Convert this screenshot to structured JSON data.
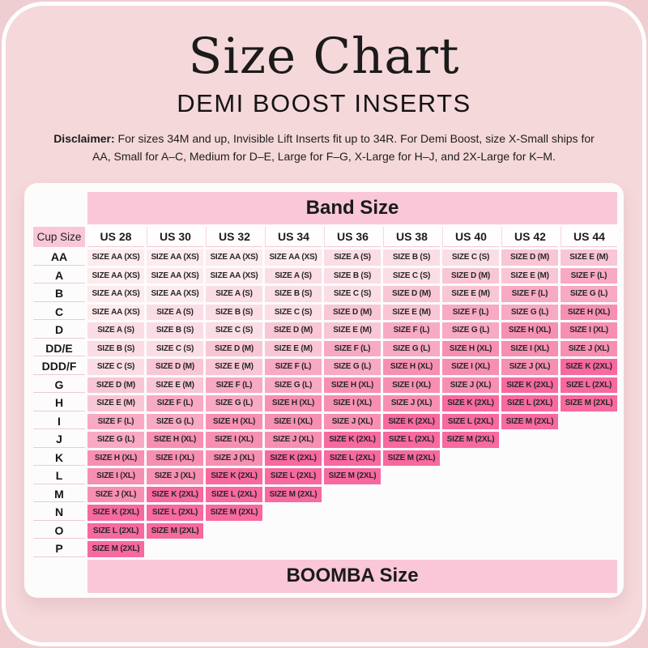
{
  "page": {
    "title": "Size Chart",
    "subtitle": "DEMI BOOST INSERTS",
    "disclaimer_label": "Disclaimer:",
    "disclaimer_text": " For sizes 34M and up, Invisible Lift Inserts fit up to 34R. For Demi Boost, size X-Small ships for AA, Small for A–C, Medium for D–E, Large for F–G, X-Large for H–J, and 2X-Large for K–M."
  },
  "colors": {
    "background": "#efcdd1",
    "panel": "#f5d8da",
    "card": "#fdfcfd",
    "header_pink": "#f9c7d8",
    "size_XS": "#fdebee",
    "size_S": "#fbdde5",
    "size_M": "#f9c6d5",
    "size_L": "#f8a9c3",
    "size_XL": "#f78fb3",
    "size_2XL": "#f7699f"
  },
  "chart_data": {
    "type": "table",
    "title": "Size Chart",
    "subtitle": "DEMI BOOST INSERTS",
    "column_group_header": "Band Size",
    "row_header": "Cup Size",
    "footer": "BOOMBA Size",
    "columns": [
      "US 28",
      "US 30",
      "US 32",
      "US 34",
      "US 36",
      "US 38",
      "US 40",
      "US 42",
      "US 44"
    ],
    "rows": [
      {
        "cup": "AA",
        "cells": [
          "SIZE AA (XS)",
          "SIZE AA (XS)",
          "SIZE AA (XS)",
          "SIZE AA (XS)",
          "SIZE A (S)",
          "SIZE B (S)",
          "SIZE C (S)",
          "SIZE D (M)",
          "SIZE E (M)"
        ]
      },
      {
        "cup": "A",
        "cells": [
          "SIZE AA (XS)",
          "SIZE AA (XS)",
          "SIZE AA (XS)",
          "SIZE A (S)",
          "SIZE B (S)",
          "SIZE C (S)",
          "SIZE D (M)",
          "SIZE E (M)",
          "SIZE F (L)"
        ]
      },
      {
        "cup": "B",
        "cells": [
          "SIZE AA (XS)",
          "SIZE AA (XS)",
          "SIZE A (S)",
          "SIZE B (S)",
          "SIZE C (S)",
          "SIZE D (M)",
          "SIZE E (M)",
          "SIZE F (L)",
          "SIZE G (L)"
        ]
      },
      {
        "cup": "C",
        "cells": [
          "SIZE AA (XS)",
          "SIZE A (S)",
          "SIZE B (S)",
          "SIZE C (S)",
          "SIZE D (M)",
          "SIZE E (M)",
          "SIZE F (L)",
          "SIZE G (L)",
          "SIZE H (XL)"
        ]
      },
      {
        "cup": "D",
        "cells": [
          "SIZE A (S)",
          "SIZE B (S)",
          "SIZE C (S)",
          "SIZE D (M)",
          "SIZE E (M)",
          "SIZE F (L)",
          "SIZE G (L)",
          "SIZE H (XL)",
          "SIZE I (XL)"
        ]
      },
      {
        "cup": "DD/E",
        "cells": [
          "SIZE B (S)",
          "SIZE C (S)",
          "SIZE D (M)",
          "SIZE E (M)",
          "SIZE F (L)",
          "SIZE G (L)",
          "SIZE H (XL)",
          "SIZE I (XL)",
          "SIZE J (XL)"
        ]
      },
      {
        "cup": "DDD/F",
        "cells": [
          "SIZE C (S)",
          "SIZE D (M)",
          "SIZE E (M)",
          "SIZE F (L)",
          "SIZE G (L)",
          "SIZE H (XL)",
          "SIZE I (XL)",
          "SIZE J (XL)",
          "SIZE K (2XL)"
        ]
      },
      {
        "cup": "G",
        "cells": [
          "SIZE D (M)",
          "SIZE E (M)",
          "SIZE F (L)",
          "SIZE G (L)",
          "SIZE H (XL)",
          "SIZE I (XL)",
          "SIZE J (XL)",
          "SIZE K (2XL)",
          "SIZE L (2XL)"
        ]
      },
      {
        "cup": "H",
        "cells": [
          "SIZE E (M)",
          "SIZE F (L)",
          "SIZE G (L)",
          "SIZE H (XL)",
          "SIZE I (XL)",
          "SIZE J (XL)",
          "SIZE K (2XL)",
          "SIZE L (2XL)",
          "SIZE M (2XL)"
        ]
      },
      {
        "cup": "I",
        "cells": [
          "SIZE F (L)",
          "SIZE G (L)",
          "SIZE H (XL)",
          "SIZE I (XL)",
          "SIZE J (XL)",
          "SIZE K (2XL)",
          "SIZE L (2XL)",
          "SIZE M (2XL)",
          ""
        ]
      },
      {
        "cup": "J",
        "cells": [
          "SIZE G (L)",
          "SIZE H (XL)",
          "SIZE I (XL)",
          "SIZE J (XL)",
          "SIZE K (2XL)",
          "SIZE L (2XL)",
          "SIZE M (2XL)",
          "",
          ""
        ]
      },
      {
        "cup": "K",
        "cells": [
          "SIZE H (XL)",
          "SIZE I (XL)",
          "SIZE J (XL)",
          "SIZE K (2XL)",
          "SIZE L (2XL)",
          "SIZE M (2XL)",
          "",
          "",
          ""
        ]
      },
      {
        "cup": "L",
        "cells": [
          "SIZE I (XL)",
          "SIZE J (XL)",
          "SIZE K (2XL)",
          "SIZE L (2XL)",
          "SIZE M (2XL)",
          "",
          "",
          "",
          ""
        ]
      },
      {
        "cup": "M",
        "cells": [
          "SIZE J (XL)",
          "SIZE K (2XL)",
          "SIZE L (2XL)",
          "SIZE M (2XL)",
          "",
          "",
          "",
          "",
          ""
        ]
      },
      {
        "cup": "N",
        "cells": [
          "SIZE K (2XL)",
          "SIZE L (2XL)",
          "SIZE M (2XL)",
          "",
          "",
          "",
          "",
          "",
          ""
        ]
      },
      {
        "cup": "O",
        "cells": [
          "SIZE L (2XL)",
          "SIZE M (2XL)",
          "",
          "",
          "",
          "",
          "",
          "",
          ""
        ]
      },
      {
        "cup": "P",
        "cells": [
          "SIZE M (2XL)",
          "",
          "",
          "",
          "",
          "",
          "",
          "",
          ""
        ]
      }
    ]
  }
}
